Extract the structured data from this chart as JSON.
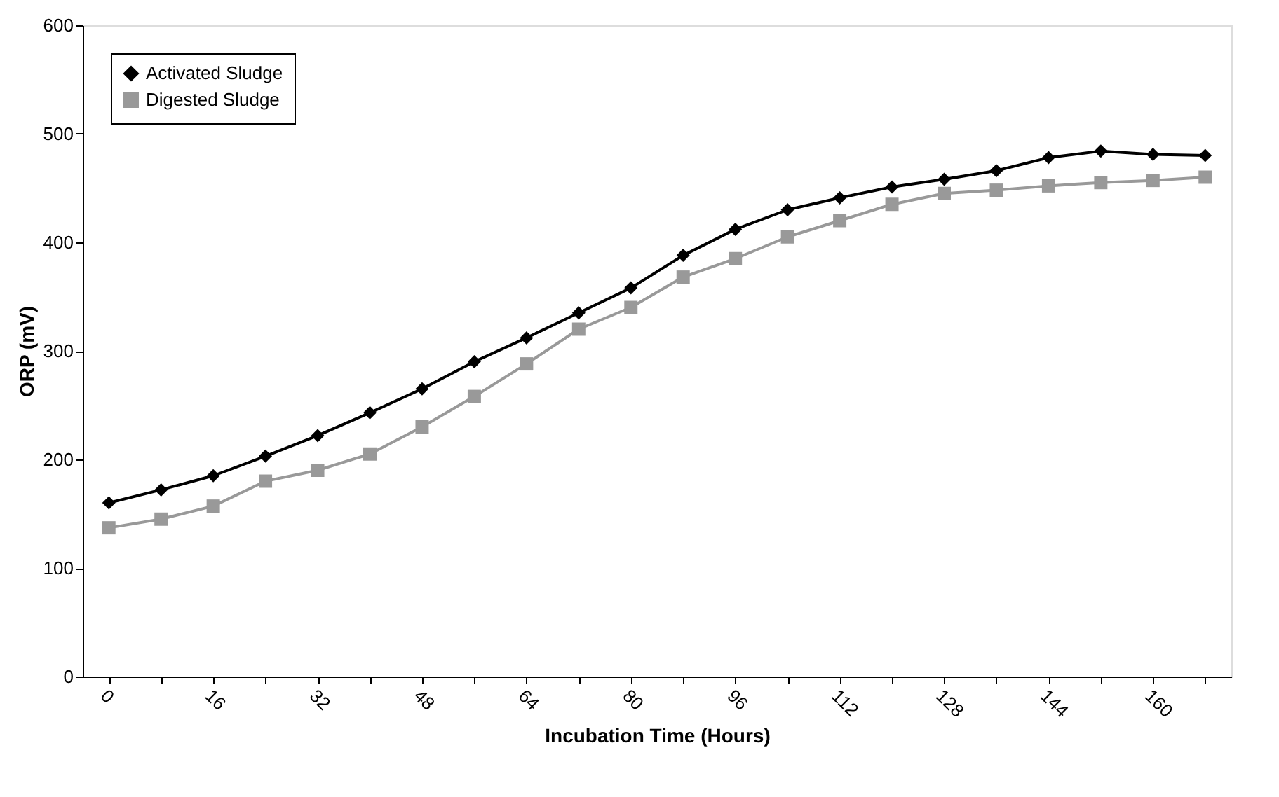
{
  "chart_data": {
    "type": "line",
    "xlabel": "Incubation Time (Hours)",
    "ylabel": "ORP (mV)",
    "categories": [
      "0",
      null,
      "16",
      null,
      "32",
      null,
      "48",
      null,
      "64",
      null,
      "80",
      null,
      "96",
      null,
      "112",
      null,
      "128",
      null,
      "144",
      null,
      "160",
      null
    ],
    "series": [
      {
        "name": "Activated Sludge",
        "color": "#000000",
        "marker": "diamond",
        "values": [
          160,
          172,
          185,
          203,
          222,
          243,
          265,
          290,
          312,
          335,
          358,
          388,
          412,
          430,
          441,
          451,
          458,
          466,
          478,
          484,
          481,
          480
        ]
      },
      {
        "name": "Digested Sludge",
        "color": "#999999",
        "marker": "square",
        "values": [
          137,
          145,
          157,
          180,
          190,
          205,
          230,
          258,
          288,
          320,
          340,
          368,
          385,
          405,
          420,
          435,
          445,
          448,
          452,
          455,
          457,
          460
        ]
      }
    ],
    "ylim": [
      0,
      600
    ],
    "yticks": [
      0,
      100,
      200,
      300,
      400,
      500,
      600
    ],
    "grid": false,
    "legend": "top left",
    "line_style": "solid"
  }
}
